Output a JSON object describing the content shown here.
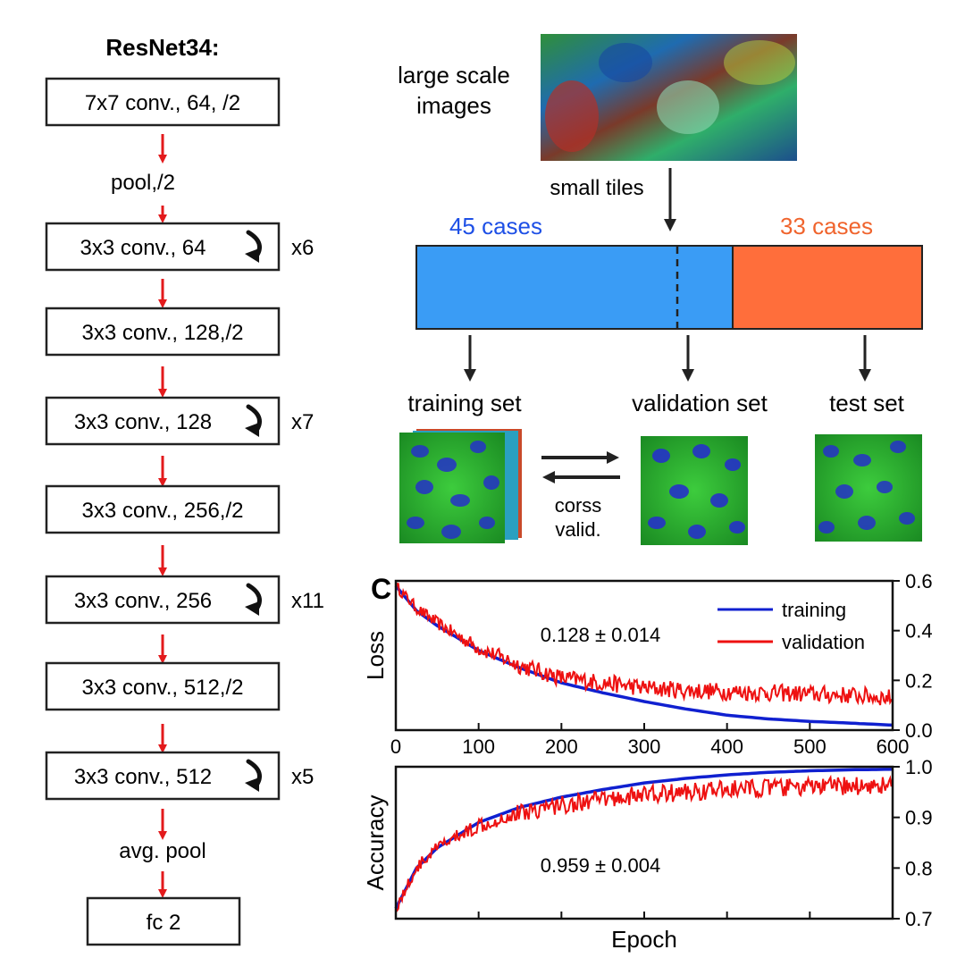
{
  "resnet": {
    "title": "ResNet34:",
    "blocks": [
      {
        "label": "7x7 conv., 64, /2",
        "repeat": ""
      },
      {
        "label": "3x3 conv., 64",
        "repeat": "x6"
      },
      {
        "label": "3x3 conv., 128,/2",
        "repeat": ""
      },
      {
        "label": "3x3 conv., 128",
        "repeat": "x7"
      },
      {
        "label": "3x3 conv., 256,/2",
        "repeat": ""
      },
      {
        "label": "3x3 conv., 256",
        "repeat": "x11"
      },
      {
        "label": "3x3 conv., 512,/2",
        "repeat": ""
      },
      {
        "label": "3x3 conv., 512",
        "repeat": "x5"
      },
      {
        "label": "fc 2",
        "repeat": ""
      }
    ],
    "pool_label": "pool,/2",
    "avg_pool_label": "avg. pool"
  },
  "pipeline": {
    "large_images_label": [
      "large scale",
      "images"
    ],
    "small_tiles_label": "small tiles",
    "cases_left": "45 cases",
    "cases_right": "33 cases",
    "training_set": "training set",
    "validation_set": "validation set",
    "test_set": "test set",
    "cross_valid": [
      "corss",
      "valid."
    ],
    "colors": {
      "left_block": "#3a9cf5",
      "right_block": "#ff6e3b",
      "left_text": "#1e50e6",
      "right_text": "#f0642d"
    }
  },
  "panel_label": "C",
  "chart_data": [
    {
      "type": "line",
      "ylabel": "Loss",
      "xlabel": "",
      "xlim": [
        0,
        600
      ],
      "ylim": [
        0,
        0.6
      ],
      "xticks": [
        "0",
        "100",
        "200",
        "300",
        "400",
        "500",
        "600"
      ],
      "yticks": [
        "0.0",
        "0.2",
        "0.4",
        "0.6"
      ],
      "annotation": "0.128 ± 0.014",
      "legend": "top-right",
      "series": [
        {
          "name": "training",
          "color": "#1020d0",
          "x": [
            0,
            25,
            50,
            100,
            150,
            200,
            250,
            300,
            350,
            400,
            450,
            500,
            550,
            600
          ],
          "y": [
            0.58,
            0.48,
            0.42,
            0.32,
            0.25,
            0.19,
            0.15,
            0.115,
            0.085,
            0.06,
            0.045,
            0.035,
            0.028,
            0.02
          ]
        },
        {
          "name": "validation",
          "color": "#ee1111",
          "x": [
            0,
            25,
            50,
            100,
            150,
            200,
            250,
            300,
            350,
            400,
            450,
            500,
            550,
            600
          ],
          "y": [
            0.58,
            0.49,
            0.43,
            0.33,
            0.26,
            0.21,
            0.19,
            0.17,
            0.16,
            0.155,
            0.15,
            0.145,
            0.14,
            0.13
          ]
        }
      ]
    },
    {
      "type": "line",
      "ylabel": "Accuracy",
      "xlabel": "Epoch",
      "xlim": [
        0,
        600
      ],
      "ylim": [
        0.7,
        1.0
      ],
      "yticks": [
        "0.7",
        "0.8",
        "0.9",
        "1.0"
      ],
      "annotation": "0.959 ± 0.004",
      "series": [
        {
          "name": "training",
          "color": "#1020d0",
          "x": [
            0,
            25,
            50,
            100,
            150,
            200,
            250,
            300,
            350,
            400,
            450,
            500,
            550,
            600
          ],
          "y": [
            0.72,
            0.8,
            0.84,
            0.89,
            0.92,
            0.94,
            0.955,
            0.968,
            0.977,
            0.984,
            0.989,
            0.992,
            0.994,
            0.995
          ]
        },
        {
          "name": "validation",
          "color": "#ee1111",
          "x": [
            0,
            25,
            50,
            100,
            150,
            200,
            250,
            300,
            350,
            400,
            450,
            500,
            550,
            600
          ],
          "y": [
            0.72,
            0.8,
            0.84,
            0.885,
            0.91,
            0.925,
            0.935,
            0.945,
            0.95,
            0.955,
            0.958,
            0.96,
            0.962,
            0.964
          ]
        }
      ]
    }
  ]
}
